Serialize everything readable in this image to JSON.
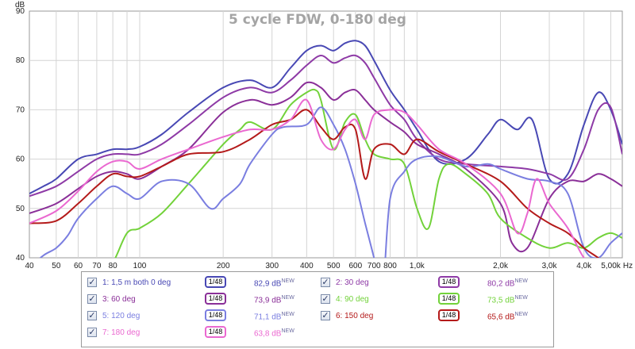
{
  "chart_data": {
    "type": "line",
    "title": "5 cycle FDW, 0-180 deg",
    "y_unit_label": "dB",
    "x_unit_label": "Hz",
    "x_scale": "log",
    "xlim": [
      40,
      5500
    ],
    "ylim": [
      40,
      90
    ],
    "grid": true,
    "legend_placement": "bottom",
    "y_ticks": [
      40,
      50,
      60,
      70,
      80,
      90
    ],
    "x_ticks": [
      {
        "v": 40,
        "label": "40"
      },
      {
        "v": 50,
        "label": "50"
      },
      {
        "v": 60,
        "label": "60"
      },
      {
        "v": 70,
        "label": "70"
      },
      {
        "v": 80,
        "label": "80"
      },
      {
        "v": 100,
        "label": "100"
      },
      {
        "v": 200,
        "label": "200"
      },
      {
        "v": 300,
        "label": "300"
      },
      {
        "v": 400,
        "label": "400"
      },
      {
        "v": 500,
        "label": "500"
      },
      {
        "v": 600,
        "label": "600"
      },
      {
        "v": 700,
        "label": "700"
      },
      {
        "v": 800,
        "label": "800"
      },
      {
        "v": 1000,
        "label": "1,0k"
      },
      {
        "v": 2000,
        "label": "2,0k"
      },
      {
        "v": 3000,
        "label": "3,0k"
      },
      {
        "v": 4000,
        "label": "4,0k"
      },
      {
        "v": 5000,
        "label": "5,00k"
      }
    ],
    "minor_x_grid": [
      90,
      900,
      5500
    ],
    "series": [
      {
        "name": "1: 1,5 m both 0 deg",
        "color": "#4848b4",
        "smoothing": "1/48",
        "level": "82,9 dB",
        "new": "NEW",
        "x": [
          40,
          45,
          50,
          60,
          70,
          80,
          90,
          100,
          120,
          150,
          200,
          250,
          300,
          350,
          400,
          450,
          500,
          550,
          600,
          650,
          700,
          800,
          900,
          1000,
          1200,
          1500,
          1800,
          2000,
          2300,
          2600,
          3000,
          3500,
          4000,
          4500,
          5000,
          5500
        ],
        "y": [
          53,
          54.5,
          56,
          60,
          61,
          62,
          62,
          62.5,
          65,
          69.5,
          74.5,
          76,
          74.5,
          78.5,
          82,
          83,
          82,
          83.5,
          84,
          83,
          80,
          74,
          70,
          66,
          59.5,
          60,
          65,
          68,
          66,
          68,
          56,
          57,
          67,
          73.5,
          70,
          63
        ]
      },
      {
        "name": "2: 30 deg",
        "color": "#8e3aa6",
        "smoothing": "1/48",
        "level": "80,2 dB",
        "new": "NEW",
        "x": [
          40,
          50,
          60,
          70,
          80,
          90,
          100,
          120,
          150,
          200,
          250,
          300,
          350,
          400,
          450,
          500,
          550,
          600,
          650,
          700,
          800,
          900,
          1000,
          1200,
          1500,
          2000,
          2500,
          3000,
          3500,
          4000,
          4500,
          5000,
          5500
        ],
        "y": [
          52.5,
          54.5,
          57.5,
          60,
          61,
          61,
          61,
          63,
          67,
          72.5,
          74.5,
          73.5,
          76,
          79,
          81,
          79.5,
          80.5,
          81,
          79.5,
          76.5,
          71,
          68,
          64,
          60,
          59,
          58.5,
          58,
          57,
          56,
          62,
          70,
          70.5,
          61
        ]
      },
      {
        "name": "3: 60 deg",
        "color": "#8a2f98",
        "smoothing": "1/48",
        "level": "73,9 dB",
        "new": "NEW",
        "x": [
          40,
          50,
          60,
          70,
          80,
          90,
          100,
          120,
          150,
          200,
          250,
          300,
          350,
          400,
          450,
          500,
          550,
          600,
          650,
          700,
          800,
          900,
          1000,
          1200,
          1500,
          2000,
          2200,
          2500,
          3000,
          3500,
          4000,
          4500,
          5000,
          5500
        ],
        "y": [
          49,
          51,
          54,
          56.5,
          57.5,
          57,
          56,
          58.5,
          62,
          69.5,
          72,
          71,
          72.5,
          75.5,
          74.5,
          72,
          73.5,
          74,
          72,
          70,
          67.5,
          65.5,
          63,
          61,
          58,
          51,
          43,
          42,
          52,
          55.5,
          55.5,
          57,
          56,
          54.5
        ]
      },
      {
        "name": "4: 90 deg",
        "color": "#72d23a",
        "smoothing": "1/48",
        "level": "73,5 dB",
        "new": "NEW",
        "x": [
          70,
          80,
          90,
          100,
          120,
          150,
          200,
          230,
          250,
          300,
          350,
          400,
          430,
          450,
          500,
          550,
          600,
          650,
          700,
          800,
          900,
          1000,
          1100,
          1200,
          1300,
          1500,
          1800,
          2000,
          2500,
          3000,
          3500,
          4000,
          4500,
          5000,
          5500
        ],
        "y": [
          35,
          39,
          45,
          46,
          49,
          55,
          63,
          66,
          67.5,
          66,
          71,
          73.5,
          74,
          72,
          62,
          67.5,
          69,
          64,
          61,
          60,
          59,
          50,
          46,
          56,
          59,
          57,
          53,
          48,
          44,
          42,
          43,
          42,
          44,
          45,
          44
        ]
      },
      {
        "name": "5: 120 deg",
        "color": "#7a7ee0",
        "smoothing": "1/48",
        "level": "71,1 dB",
        "new": "NEW",
        "x": [
          40,
          45,
          50,
          55,
          60,
          70,
          80,
          90,
          100,
          120,
          150,
          180,
          200,
          230,
          250,
          300,
          330,
          400,
          450,
          500,
          550,
          600,
          650,
          700,
          750,
          800,
          900,
          1000,
          1200,
          1500,
          1800,
          2000,
          2500,
          3000,
          3500,
          4000,
          4500,
          5000,
          5500
        ],
        "y": [
          38,
          40.5,
          42,
          44.5,
          48,
          52,
          54.5,
          53,
          52,
          55.5,
          55,
          50,
          52,
          55,
          59,
          65,
          66.5,
          67,
          70.5,
          67,
          62,
          55,
          47,
          40,
          33,
          52,
          57.5,
          60,
          60.5,
          58.5,
          59,
          58,
          56,
          55.5,
          53,
          42,
          40,
          43,
          45
        ]
      },
      {
        "name": "6: 150 deg",
        "color": "#b41a1a",
        "smoothing": "1/48",
        "level": "65,6 dB",
        "new": "NEW",
        "x": [
          40,
          50,
          60,
          70,
          80,
          90,
          100,
          120,
          150,
          200,
          250,
          300,
          350,
          400,
          450,
          500,
          550,
          600,
          650,
          700,
          800,
          900,
          1000,
          1200,
          1500,
          2000,
          2500,
          3000,
          3500,
          4000,
          4500,
          5000,
          5500
        ],
        "y": [
          47,
          47.5,
          51,
          54.5,
          57,
          56.5,
          56.5,
          58.5,
          61,
          61.5,
          64,
          67,
          68,
          70,
          66.5,
          64,
          66.5,
          66,
          56,
          62,
          63,
          61,
          64,
          61.5,
          59,
          55.5,
          50,
          47,
          45,
          42,
          40,
          38,
          36
        ]
      },
      {
        "name": "7: 180 deg",
        "color": "#ea68d0",
        "smoothing": "1/48",
        "level": "63,8 dB",
        "new": "NEW",
        "x": [
          40,
          50,
          60,
          70,
          80,
          90,
          100,
          120,
          150,
          200,
          250,
          300,
          350,
          400,
          450,
          500,
          550,
          600,
          650,
          700,
          800,
          900,
          1000,
          1200,
          1500,
          2000,
          2300,
          2500,
          2700,
          3000,
          3500,
          4000,
          4500,
          5000,
          5500
        ],
        "y": [
          47,
          49.5,
          53.5,
          57.5,
          59.5,
          59.5,
          58,
          60,
          62,
          64.5,
          66,
          66,
          68,
          72,
          64,
          62,
          66,
          68,
          64,
          69,
          70,
          69.5,
          67,
          62,
          59,
          53,
          45,
          49,
          56,
          51,
          46,
          40,
          38,
          37,
          36
        ]
      }
    ]
  },
  "legend": {
    "checkmark": "✓",
    "smoothing_label": "1/48",
    "new_badge": "NEW"
  }
}
